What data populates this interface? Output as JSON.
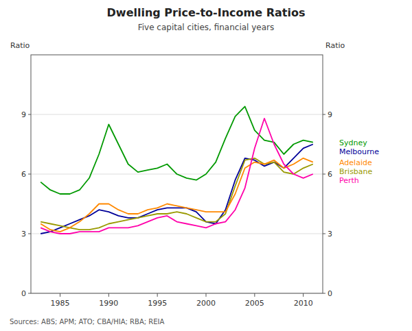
{
  "chart_data": {
    "type": "line",
    "title": "Dwelling Price-to-Income Ratios",
    "subtitle": "Five capital cities, financial years",
    "ylabel": "Ratio",
    "source": "Sources: ABS; APM; ATO; CBA/HIA; RBA; REIA",
    "x": [
      1983,
      1984,
      1985,
      1986,
      1987,
      1988,
      1989,
      1990,
      1991,
      1992,
      1993,
      1994,
      1995,
      1996,
      1997,
      1998,
      1999,
      2000,
      2001,
      2002,
      2003,
      2004,
      2005,
      2006,
      2007,
      2008,
      2009,
      2010,
      2011
    ],
    "xlim": [
      1982,
      2012
    ],
    "xticks": [
      1985,
      1990,
      1995,
      2000,
      2005,
      2010
    ],
    "ylim": [
      0,
      12
    ],
    "yticks": [
      0,
      3,
      6,
      9
    ],
    "y2lim": [
      0,
      12
    ],
    "y2ticks": [
      0,
      3,
      6,
      9
    ],
    "grid": true,
    "series": [
      {
        "name": "Sydney",
        "color": "#009900",
        "values": [
          5.6,
          5.2,
          5.0,
          5.0,
          5.2,
          5.8,
          7.0,
          8.5,
          7.5,
          6.5,
          6.1,
          6.2,
          6.3,
          6.5,
          6.0,
          5.8,
          5.7,
          6.0,
          6.6,
          7.8,
          8.9,
          9.4,
          8.2,
          7.7,
          7.6,
          7.0,
          7.5,
          7.7,
          7.6
        ]
      },
      {
        "name": "Melbourne",
        "color": "#000099",
        "values": [
          3.0,
          3.1,
          3.3,
          3.5,
          3.7,
          3.9,
          4.2,
          4.1,
          3.9,
          3.8,
          3.8,
          4.0,
          4.2,
          4.3,
          4.3,
          4.3,
          4.1,
          3.6,
          3.5,
          4.2,
          5.7,
          6.8,
          6.7,
          6.4,
          6.6,
          6.3,
          6.8,
          7.3,
          7.5
        ]
      },
      {
        "name": "Brisbane",
        "color": "#999900",
        "values": [
          3.6,
          3.5,
          3.4,
          3.3,
          3.2,
          3.2,
          3.3,
          3.5,
          3.6,
          3.7,
          3.8,
          3.9,
          4.0,
          4.0,
          4.1,
          4.0,
          3.8,
          3.6,
          3.6,
          4.0,
          5.4,
          6.7,
          6.8,
          6.5,
          6.6,
          6.1,
          6.0,
          6.3,
          6.5
        ]
      },
      {
        "name": "Adelaide",
        "color": "#ff8800",
        "values": [
          3.5,
          3.2,
          3.1,
          3.3,
          3.6,
          4.0,
          4.5,
          4.5,
          4.2,
          4.0,
          4.0,
          4.2,
          4.3,
          4.5,
          4.4,
          4.3,
          4.2,
          4.1,
          4.1,
          4.1,
          5.0,
          6.3,
          6.6,
          6.5,
          6.7,
          6.3,
          6.5,
          6.8,
          6.6
        ]
      },
      {
        "name": "Perth",
        "color": "#ff00aa",
        "values": [
          3.3,
          3.1,
          3.0,
          3.0,
          3.1,
          3.1,
          3.1,
          3.3,
          3.3,
          3.3,
          3.4,
          3.6,
          3.8,
          3.9,
          3.6,
          3.5,
          3.4,
          3.3,
          3.5,
          3.6,
          4.2,
          5.3,
          7.3,
          8.8,
          7.5,
          6.5,
          6.0,
          5.8,
          6.0
        ]
      }
    ]
  }
}
